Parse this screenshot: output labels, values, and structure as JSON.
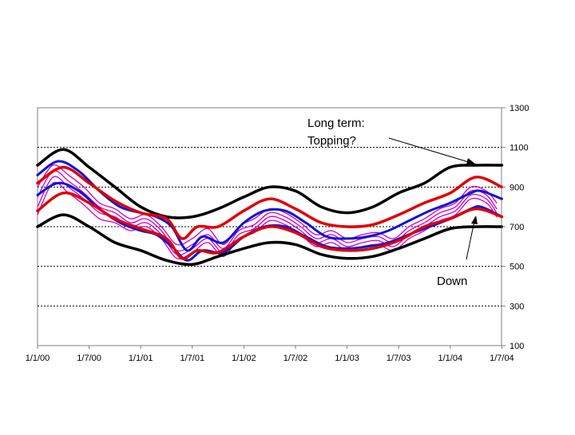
{
  "chart_data": {
    "type": "line",
    "x_tick_labels": [
      "1/1/00",
      "1/7/00",
      "1/1/01",
      "1/7/01",
      "1/1/02",
      "1/7/02",
      "1/1/03",
      "1/7/03",
      "1/1/04",
      "1/7/04"
    ],
    "y_ticks": [
      100,
      300,
      500,
      700,
      900,
      1100,
      1300
    ],
    "y_axis_side": "right",
    "ylim": [
      100,
      1300
    ],
    "grid": "horizontal dotted",
    "annotations": [
      {
        "id": "long-term",
        "lines": [
          "Long term:",
          "Topping?"
        ],
        "points_to": "upper black band near end"
      },
      {
        "id": "down",
        "lines": [
          "Down"
        ],
        "points_to": "lower red band near end"
      }
    ],
    "series": [
      {
        "color": "#000000",
        "style": "thick",
        "x": [
          0,
          0.25,
          0.5,
          0.75,
          1.0,
          1.25,
          1.5,
          1.75,
          2.0,
          2.25,
          2.5,
          2.75,
          3.0,
          3.25,
          3.5,
          3.75,
          4.0,
          4.25,
          4.5
        ],
        "values": [
          1010,
          1090,
          1000,
          900,
          800,
          750,
          750,
          790,
          850,
          900,
          880,
          800,
          770,
          800,
          870,
          920,
          1000,
          1010,
          1010
        ]
      },
      {
        "color": "#000000",
        "style": "thick",
        "x": [
          0,
          0.25,
          0.5,
          0.75,
          1.0,
          1.25,
          1.5,
          1.75,
          2.0,
          2.25,
          2.5,
          2.75,
          3.0,
          3.25,
          3.5,
          3.75,
          4.0,
          4.25,
          4.5
        ],
        "values": [
          700,
          760,
          700,
          620,
          580,
          530,
          510,
          550,
          590,
          620,
          610,
          560,
          540,
          550,
          590,
          640,
          690,
          700,
          700
        ]
      },
      {
        "color": "#e00000",
        "style": "thick",
        "x": [
          0,
          0.25,
          0.5,
          0.75,
          1.0,
          1.25,
          1.4,
          1.55,
          1.75,
          2.0,
          2.25,
          2.5,
          2.75,
          3.0,
          3.25,
          3.5,
          3.75,
          4.0,
          4.25,
          4.5
        ],
        "values": [
          920,
          1000,
          920,
          830,
          770,
          740,
          640,
          700,
          700,
          780,
          840,
          790,
          720,
          700,
          710,
          760,
          820,
          870,
          950,
          900
        ]
      },
      {
        "color": "#e00000",
        "style": "thick",
        "x": [
          0,
          0.25,
          0.5,
          0.75,
          1.0,
          1.25,
          1.4,
          1.55,
          1.75,
          2.0,
          2.25,
          2.5,
          2.75,
          3.0,
          3.25,
          3.5,
          3.75,
          4.0,
          4.25,
          4.5
        ],
        "values": [
          780,
          870,
          820,
          740,
          690,
          640,
          540,
          580,
          570,
          650,
          700,
          670,
          600,
          580,
          590,
          630,
          700,
          740,
          790,
          750
        ]
      },
      {
        "color": "#0a16d6",
        "style": "medium",
        "x": [
          0,
          0.2,
          0.4,
          0.6,
          0.8,
          1.0,
          1.15,
          1.3,
          1.45,
          1.6,
          1.8,
          2.0,
          2.2,
          2.4,
          2.6,
          2.8,
          3.0,
          3.2,
          3.4,
          3.6,
          3.8,
          4.0,
          4.2,
          4.3,
          4.5
        ],
        "values": [
          960,
          1030,
          980,
          880,
          800,
          770,
          750,
          700,
          580,
          650,
          620,
          720,
          780,
          780,
          720,
          650,
          640,
          650,
          680,
          730,
          780,
          820,
          870,
          880,
          840
        ]
      },
      {
        "color": "#0a16d6",
        "style": "medium",
        "x": [
          0,
          0.2,
          0.4,
          0.6,
          0.8,
          1.0,
          1.15,
          1.3,
          1.45,
          1.6,
          1.8,
          2.0,
          2.2,
          2.4,
          2.6,
          2.8,
          3.0,
          3.2,
          3.4,
          3.6,
          3.8,
          4.0,
          4.2,
          4.3,
          4.5
        ],
        "values": [
          860,
          920,
          880,
          790,
          720,
          680,
          660,
          600,
          530,
          580,
          570,
          650,
          700,
          700,
          650,
          600,
          590,
          600,
          620,
          660,
          700,
          740,
          790,
          800,
          750
        ]
      },
      {
        "color": "#cc00cc",
        "style": "thin",
        "x": [
          0,
          0.15,
          0.3,
          0.45,
          0.6,
          0.75,
          0.9,
          1.05,
          1.2,
          1.35,
          1.5,
          1.65,
          1.8,
          1.95,
          2.1,
          2.25,
          2.4,
          2.55,
          2.7,
          2.85,
          3.0,
          3.15,
          3.3,
          3.45,
          3.6,
          3.75,
          3.9,
          4.05,
          4.2,
          4.35,
          4.45
        ],
        "values": [
          900,
          1010,
          960,
          900,
          820,
          790,
          740,
          760,
          700,
          610,
          640,
          690,
          610,
          700,
          740,
          790,
          770,
          720,
          660,
          680,
          640,
          660,
          670,
          640,
          700,
          740,
          790,
          820,
          900,
          880,
          820
        ]
      },
      {
        "color": "#cc00cc",
        "style": "thin",
        "x": [
          0,
          0.15,
          0.3,
          0.45,
          0.6,
          0.75,
          0.9,
          1.05,
          1.2,
          1.35,
          1.5,
          1.65,
          1.8,
          1.95,
          2.1,
          2.25,
          2.4,
          2.55,
          2.7,
          2.85,
          3.0,
          3.15,
          3.3,
          3.45,
          3.6,
          3.75,
          3.9,
          4.05,
          4.2,
          4.35,
          4.45
        ],
        "values": [
          850,
          980,
          930,
          870,
          800,
          770,
          720,
          740,
          680,
          580,
          610,
          660,
          590,
          680,
          710,
          770,
          750,
          700,
          640,
          660,
          620,
          640,
          650,
          620,
          680,
          720,
          770,
          800,
          880,
          860,
          790
        ]
      },
      {
        "color": "#cc00cc",
        "style": "thin",
        "x": [
          0,
          0.15,
          0.3,
          0.45,
          0.6,
          0.75,
          0.9,
          1.05,
          1.2,
          1.35,
          1.5,
          1.65,
          1.8,
          1.95,
          2.1,
          2.25,
          2.4,
          2.55,
          2.7,
          2.85,
          3.0,
          3.15,
          3.3,
          3.45,
          3.6,
          3.75,
          3.9,
          4.05,
          4.2,
          4.35,
          4.45
        ],
        "values": [
          800,
          950,
          900,
          840,
          770,
          750,
          700,
          720,
          660,
          560,
          590,
          640,
          570,
          660,
          690,
          750,
          730,
          680,
          620,
          640,
          600,
          620,
          630,
          600,
          660,
          700,
          750,
          780,
          860,
          840,
          770
        ]
      },
      {
        "color": "#cc00cc",
        "style": "thin",
        "x": [
          0,
          0.15,
          0.3,
          0.45,
          0.6,
          0.75,
          0.9,
          1.05,
          1.2,
          1.35,
          1.5,
          1.65,
          1.8,
          1.95,
          2.1,
          2.25,
          2.4,
          2.55,
          2.7,
          2.85,
          3.0,
          3.15,
          3.3,
          3.45,
          3.6,
          3.75,
          3.9,
          4.05,
          4.2,
          4.35,
          4.45
        ],
        "values": [
          760,
          920,
          870,
          810,
          740,
          720,
          680,
          700,
          640,
          540,
          570,
          620,
          550,
          640,
          670,
          730,
          710,
          660,
          600,
          620,
          580,
          600,
          610,
          580,
          640,
          680,
          730,
          760,
          840,
          820,
          750
        ]
      }
    ]
  }
}
